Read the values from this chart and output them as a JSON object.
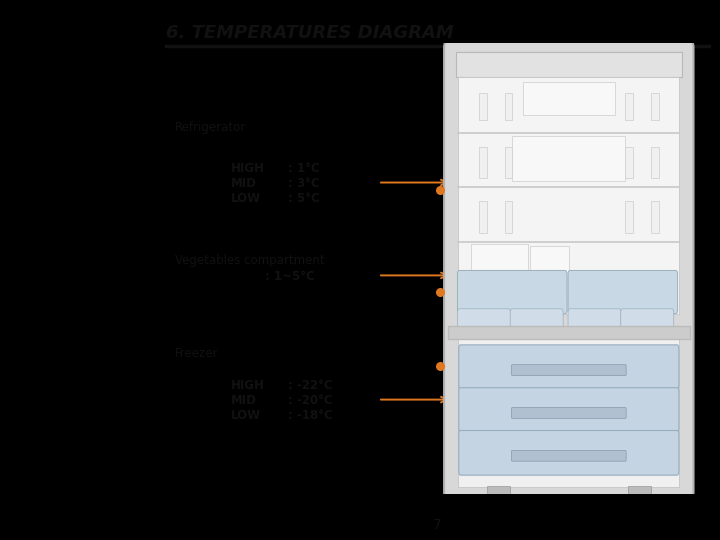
{
  "title": "6. TEMPERATURES DIAGRAM",
  "page_number": "7",
  "arrow_color": "#e07820",
  "bg_black": "#000000",
  "bg_white": "#ffffff",
  "text_color": "#111111",
  "title_fontsize": 13,
  "label_fontsize": 8,
  "val_fontsize": 8,
  "sections": {
    "refrigerator": {
      "label": "Refrigerator",
      "rows": [
        {
          "name": "HIGH",
          "val": ": 1°C"
        },
        {
          "name": "MID",
          "val": ": 3°C"
        },
        {
          "name": "LOW",
          "val": ": 5°C"
        }
      ],
      "arrow_row": 1
    },
    "vegetables": {
      "label": "Vegetables compartment",
      "val": ": 1~5°C",
      "arrow_row": 0
    },
    "freezer": {
      "label": "Freezer",
      "rows": [
        {
          "name": "HIGH",
          "val": ": -22°C"
        },
        {
          "name": "MID",
          "val": ": -20°C"
        },
        {
          "name": "LOW",
          "val": ": -18°C"
        }
      ],
      "arrow_row": 1
    }
  }
}
